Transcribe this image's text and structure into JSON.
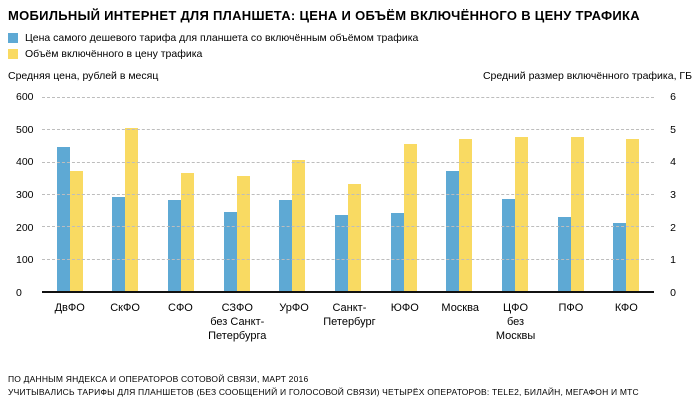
{
  "title": "МОБИЛЬНЫЙ ИНТЕРНЕТ ДЛЯ ПЛАНШЕТА: ЦЕНА И ОБЪЁМ ВКЛЮЧЁННОГО В ЦЕНУ ТРАФИКА",
  "legend": [
    {
      "label": "Цена самого дешевого тарифа для планшета со включённым объёмом трафика",
      "color": "#5ea9d4"
    },
    {
      "label": "Объём включённого в цену трафика",
      "color": "#f9da62"
    }
  ],
  "footer": {
    "line1": "ПО ДАННЫМ ЯНДЕКСА И ОПЕРАТОРОВ СОТОВОЙ СВЯЗИ, МАРТ 2016",
    "line2": "УЧИТЫВАЛИСЬ ТАРИФЫ ДЛЯ ПЛАНШЕТОВ (БЕЗ СООБЩЕНИЙ И ГОЛОСОВОЙ СВЯЗИ) ЧЕТЫРЁХ ОПЕРАТОРОВ: TELE2, БИЛАЙН, МЕГАФОН И МТС"
  },
  "chart_data": {
    "type": "bar",
    "categories": [
      "ДвФО",
      "СкФО",
      "СФО",
      "СЗФО\nбез Санкт-\nПетербурга",
      "УрФО",
      "Санкт-\nПетербург",
      "ЮФО",
      "Москва",
      "ЦФО\nбез Москвы",
      "ПФО",
      "КФО"
    ],
    "series": [
      {
        "key": "price",
        "name": "Цена самого дешевого тарифа для планшета со включённым объёмом трафика",
        "axis": "left",
        "unit": "рублей в месяц",
        "color": "#5ea9d4",
        "values": [
          445,
          290,
          280,
          245,
          280,
          235,
          240,
          370,
          285,
          230,
          210
        ]
      },
      {
        "key": "volume",
        "name": "Объём включённого в цену трафика",
        "axis": "right",
        "unit": "ГБ",
        "color": "#f9da62",
        "values": [
          3.7,
          5.05,
          3.65,
          3.55,
          4.05,
          3.3,
          4.55,
          4.7,
          4.75,
          4.75,
          4.7
        ]
      }
    ],
    "left_axis": {
      "label": "Средняя цена, рублей в месяц",
      "min": 0,
      "max": 600,
      "step": 100
    },
    "right_axis": {
      "label": "Средний размер включённого трафика, ГБ",
      "min": 0,
      "max": 6,
      "step": 1
    },
    "grid": "horizontal-dashed",
    "legend_position": "top-left"
  }
}
